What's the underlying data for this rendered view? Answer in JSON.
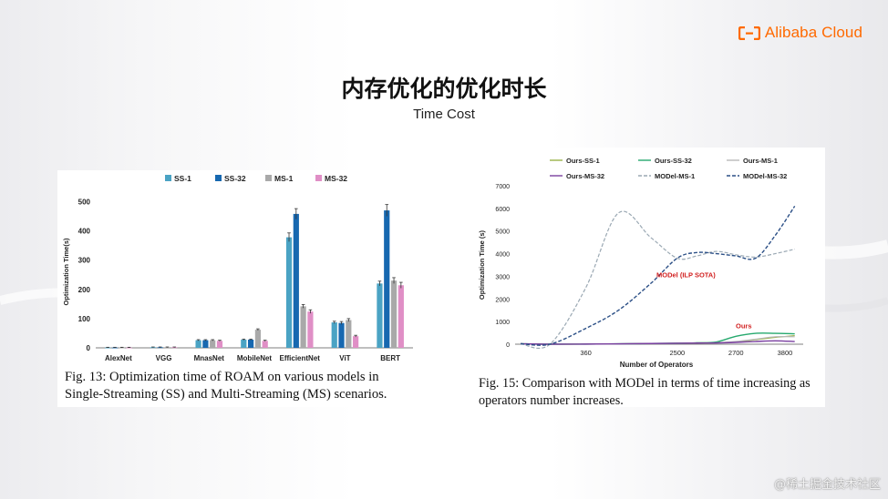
{
  "brand": {
    "logo_text": "Alibaba Cloud",
    "logo_color": "#ff6a00"
  },
  "slide": {
    "title": "内存优化的优化时长",
    "subtitle": "Time Cost",
    "watermark": "@稀土掘金技术社区"
  },
  "colors": {
    "ss1": "#4aa3c4",
    "ss32": "#1768b0",
    "ms1": "#a9a9a9",
    "ms32": "#e08fc6",
    "ours_ss1": "#9ab34a",
    "ours_ss32": "#26a96e",
    "ours_ms1": "#b8b8b8",
    "ours_ms32": "#7a3fa0",
    "model_ms1": "#9aa8b3",
    "model_ms32": "#2b4f86",
    "annotation": "#d11f1f"
  },
  "chart_data": [
    {
      "type": "bar",
      "title": "",
      "xlabel": "",
      "ylabel": "Optimization Time(s)",
      "ylim": [
        0,
        520
      ],
      "yticks": [
        0,
        100,
        200,
        300,
        400,
        500
      ],
      "legend_position": "top",
      "categories": [
        "AlexNet",
        "VGG",
        "MnasNet",
        "MobileNet",
        "EfficientNet",
        "ViT",
        "BERT"
      ],
      "series": [
        {
          "name": "SS-1",
          "values": [
            1,
            2,
            26,
            28,
            378,
            87,
            220
          ]
        },
        {
          "name": "SS-32",
          "values": [
            1,
            2,
            26,
            28,
            458,
            85,
            470
          ]
        },
        {
          "name": "MS-1",
          "values": [
            1,
            2,
            26,
            62,
            142,
            95,
            230
          ]
        },
        {
          "name": "MS-32",
          "values": [
            1,
            2,
            24,
            24,
            124,
            40,
            214
          ]
        }
      ],
      "error": [
        [
          1,
          1,
          2,
          2,
          15,
          4,
          8
        ],
        [
          1,
          1,
          2,
          2,
          18,
          5,
          20
        ],
        [
          1,
          1,
          2,
          3,
          6,
          5,
          10
        ],
        [
          1,
          1,
          2,
          2,
          6,
          3,
          10
        ]
      ],
      "caption": "Fig. 13: Optimization time of ROAM on various models in Single-Streaming (SS) and Multi-Streaming (MS) scenarios."
    },
    {
      "type": "line",
      "title": "",
      "xlabel": "Number of Operators",
      "ylabel": "Optimization Time (s)",
      "ylim": [
        0,
        7000
      ],
      "yticks": [
        0,
        1000,
        2000,
        3000,
        4000,
        5000,
        6000,
        7000
      ],
      "x_tick_labels": [
        "360",
        "2500",
        "2700",
        "3800"
      ],
      "legend_position": "top",
      "series": [
        {
          "name": "Ours-SS-1",
          "x": [
            0,
            0.45,
            1.0,
            1.5,
            2.0,
            2.4,
            2.7,
            3.0,
            3.3,
            3.6,
            3.9,
            4.2
          ],
          "values": [
            20,
            0,
            5,
            15,
            30,
            40,
            60,
            70,
            100,
            200,
            300,
            380
          ]
        },
        {
          "name": "Ours-SS-32",
          "x": [
            0,
            0.45,
            1.0,
            1.5,
            2.0,
            2.4,
            2.7,
            3.0,
            3.3,
            3.6,
            3.9,
            4.2
          ],
          "values": [
            20,
            0,
            5,
            15,
            30,
            40,
            60,
            100,
            350,
            480,
            480,
            460
          ]
        },
        {
          "name": "Ours-MS-1",
          "x": [
            0,
            0.45,
            1.0,
            1.5,
            2.0,
            2.4,
            2.7,
            3.0,
            3.3,
            3.6,
            3.9,
            4.2
          ],
          "values": [
            20,
            0,
            5,
            15,
            30,
            40,
            55,
            60,
            120,
            220,
            330,
            330
          ]
        },
        {
          "name": "Ours-MS-32",
          "x": [
            0,
            0.45,
            1.0,
            1.5,
            2.0,
            2.4,
            2.7,
            3.0,
            3.3,
            3.6,
            3.9,
            4.2
          ],
          "values": [
            20,
            0,
            5,
            15,
            30,
            40,
            50,
            55,
            80,
            120,
            150,
            120
          ]
        },
        {
          "name": "MODel-MS-1",
          "x": [
            0,
            0.45,
            1.0,
            1.5,
            2.0,
            2.4,
            2.7,
            3.0,
            3.3,
            3.6,
            3.9,
            4.2
          ],
          "values": [
            20,
            0,
            2500,
            5800,
            4700,
            3800,
            3900,
            4100,
            3950,
            3850,
            4000,
            4200
          ]
        },
        {
          "name": "MODel-MS-32",
          "x": [
            0,
            0.45,
            1.0,
            1.5,
            2.0,
            2.4,
            2.7,
            3.0,
            3.3,
            3.6,
            3.9,
            4.2
          ],
          "values": [
            20,
            0,
            700,
            1500,
            2700,
            3800,
            4050,
            4000,
            3900,
            3800,
            4800,
            6100
          ]
        }
      ],
      "annotations": [
        "MODel (ILP SOTA)",
        "Ours"
      ],
      "caption": "Fig. 15: Comparison with MODel in terms of time increasing as operators number increases."
    }
  ]
}
